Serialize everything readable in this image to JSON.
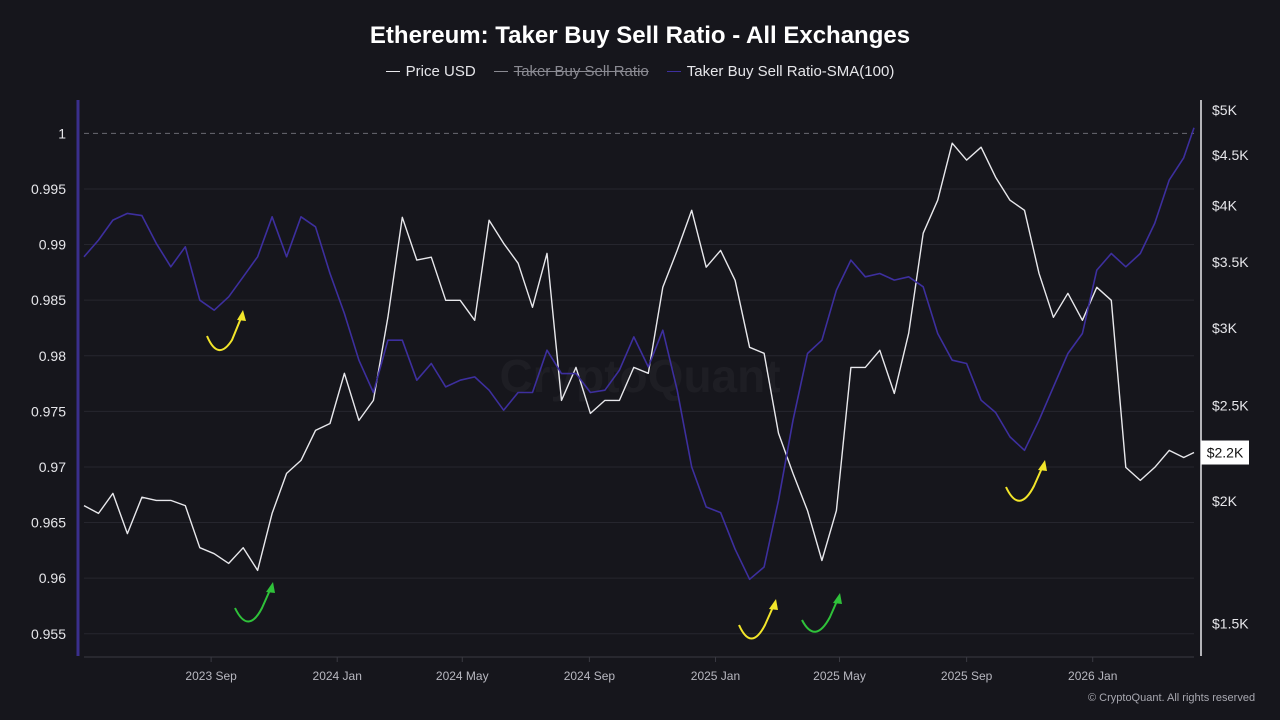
{
  "chart_data": {
    "type": "line",
    "title": "Ethereum: Taker Buy Sell Ratio - All Exchanges",
    "legend": [
      {
        "name": "Price USD",
        "color": "#e8e8ec",
        "visible": true
      },
      {
        "name": "Taker Buy Sell Ratio",
        "color": "#8a8a92",
        "visible": false
      },
      {
        "name": "Taker Buy Sell Ratio-SMA(100)",
        "color": "#3d2f9e",
        "visible": true
      }
    ],
    "legend_placement": "top-center",
    "xlim": [
      "2023-05-01",
      "2026-04-09"
    ],
    "x_ticks": [
      {
        "label": "2023 Sep",
        "date": "2023-09-01"
      },
      {
        "label": "2024 Jan",
        "date": "2024-01-01"
      },
      {
        "label": "2024 May",
        "date": "2024-05-01"
      },
      {
        "label": "2024 Sep",
        "date": "2024-09-01"
      },
      {
        "label": "2025 Jan",
        "date": "2025-01-01"
      },
      {
        "label": "2025 May",
        "date": "2025-05-01"
      },
      {
        "label": "2025 Sep",
        "date": "2025-09-01"
      },
      {
        "label": "2026 Jan",
        "date": "2026-01-01"
      }
    ],
    "y_left": {
      "ylim": [
        0.953,
        1.003
      ],
      "ticks": [
        {
          "v": 1,
          "label": "1"
        },
        {
          "v": 0.995,
          "label": "0.995"
        },
        {
          "v": 0.99,
          "label": "0.99"
        },
        {
          "v": 0.985,
          "label": "0.985"
        },
        {
          "v": 0.98,
          "label": "0.98"
        },
        {
          "v": 0.975,
          "label": "0.975"
        },
        {
          "v": 0.97,
          "label": "0.97"
        },
        {
          "v": 0.965,
          "label": "0.965"
        },
        {
          "v": 0.96,
          "label": "0.96"
        },
        {
          "v": 0.955,
          "label": "0.955"
        }
      ],
      "reference_line": 1,
      "grid": true
    },
    "y_right": {
      "scale": "log",
      "ylim": [
        1390,
        5120
      ],
      "ticks": [
        {
          "v": 5000,
          "label": "$5K"
        },
        {
          "v": 4500,
          "label": "$4.5K"
        },
        {
          "v": 4000,
          "label": "$4K"
        },
        {
          "v": 3500,
          "label": "$3.5K"
        },
        {
          "v": 3000,
          "label": "$3K"
        },
        {
          "v": 2500,
          "label": "$2.5K"
        },
        {
          "v": 2000,
          "label": "$2K"
        },
        {
          "v": 1500,
          "label": "$1.5K"
        }
      ],
      "current_label": "$2.2K",
      "current_value": 2240
    },
    "x": [
      "2023-05-01",
      "2023-05-15",
      "2023-05-29",
      "2023-06-12",
      "2023-06-26",
      "2023-07-10",
      "2023-07-24",
      "2023-08-07",
      "2023-08-21",
      "2023-09-04",
      "2023-09-18",
      "2023-10-02",
      "2023-10-16",
      "2023-10-30",
      "2023-11-13",
      "2023-11-27",
      "2023-12-11",
      "2023-12-25",
      "2024-01-08",
      "2024-01-22",
      "2024-02-05",
      "2024-02-19",
      "2024-03-04",
      "2024-03-18",
      "2024-04-01",
      "2024-04-15",
      "2024-04-29",
      "2024-05-13",
      "2024-05-27",
      "2024-06-10",
      "2024-06-24",
      "2024-07-08",
      "2024-07-22",
      "2024-08-05",
      "2024-08-19",
      "2024-09-02",
      "2024-09-16",
      "2024-09-30",
      "2024-10-14",
      "2024-10-28",
      "2024-11-11",
      "2024-11-25",
      "2024-12-09",
      "2024-12-23",
      "2025-01-06",
      "2025-01-20",
      "2025-02-03",
      "2025-02-17",
      "2025-03-03",
      "2025-03-17",
      "2025-03-31",
      "2025-04-14",
      "2025-04-28",
      "2025-05-12",
      "2025-05-26",
      "2025-06-09",
      "2025-06-23",
      "2025-07-07",
      "2025-07-21",
      "2025-08-04",
      "2025-08-18",
      "2025-09-01",
      "2025-09-15",
      "2025-09-29",
      "2025-10-13",
      "2025-10-27",
      "2025-11-10",
      "2025-11-24",
      "2025-12-08",
      "2025-12-22",
      "2026-01-05",
      "2026-01-19",
      "2026-02-02",
      "2026-02-16",
      "2026-03-02",
      "2026-03-16",
      "2026-03-30",
      "2026-04-09"
    ],
    "series": [
      {
        "name": "Price USD",
        "axis": "right",
        "color": "#e8e8ec",
        "values": [
          1978,
          1942,
          2035,
          1852,
          2017,
          2002,
          2002,
          1978,
          1792,
          1767,
          1727,
          1792,
          1699,
          1942,
          2133,
          2199,
          2359,
          2398,
          2697,
          2415,
          2531,
          3076,
          3889,
          3517,
          3541,
          3201,
          3201,
          3054,
          3862,
          3659,
          3492,
          3149,
          3573,
          2531,
          2735,
          2455,
          2531,
          2531,
          2735,
          2697,
          3300,
          3598,
          3953,
          3459,
          3598,
          3355,
          2867,
          2827,
          2343,
          2133,
          1955,
          1739,
          1955,
          2735,
          2735,
          2847,
          2573,
          2963,
          3746,
          4048,
          4627,
          4447,
          4583,
          4272,
          4048,
          3953,
          3410,
          3076,
          3254,
          3054,
          3300,
          3201,
          2163,
          2098,
          2163,
          2251,
          2214,
          2240
        ]
      },
      {
        "name": "Taker Buy Sell Ratio-SMA(100)",
        "axis": "left",
        "color": "#3d2f9e",
        "values": [
          0.9889,
          0.9904,
          0.9922,
          0.9928,
          0.9926,
          0.9901,
          0.988,
          0.9898,
          0.985,
          0.9841,
          0.9853,
          0.9871,
          0.9889,
          0.9925,
          0.9889,
          0.9925,
          0.9916,
          0.9874,
          0.9838,
          0.9796,
          0.9767,
          0.9814,
          0.9814,
          0.9778,
          0.9793,
          0.9772,
          0.9778,
          0.9781,
          0.9769,
          0.9751,
          0.9767,
          0.9767,
          0.9805,
          0.9784,
          0.9784,
          0.9767,
          0.9769,
          0.9787,
          0.9817,
          0.979,
          0.9823,
          0.9769,
          0.97,
          0.9664,
          0.9659,
          0.9626,
          0.9599,
          0.961,
          0.967,
          0.9742,
          0.9802,
          0.9814,
          0.9859,
          0.9886,
          0.9871,
          0.9874,
          0.9868,
          0.9871,
          0.9862,
          0.982,
          0.9796,
          0.9793,
          0.976,
          0.9749,
          0.9727,
          0.9715,
          0.9742,
          0.9772,
          0.9802,
          0.982,
          0.9877,
          0.9892,
          0.988,
          0.9892,
          0.9919,
          0.9958,
          0.9978,
          1.0005
        ]
      }
    ],
    "annotations": [
      {
        "type": "curved-arrow",
        "color": "#f2e52a",
        "near": "2023-08"
      },
      {
        "type": "curved-arrow",
        "color": "#2fc23a",
        "near": "2023-10"
      },
      {
        "type": "curved-arrow",
        "color": "#f2e52a",
        "near": "2025-02"
      },
      {
        "type": "curved-arrow",
        "color": "#2fc23a",
        "near": "2025-04"
      },
      {
        "type": "curved-arrow",
        "color": "#f2e52a",
        "near": "2025-11"
      }
    ],
    "watermark": "CryptoQuant"
  },
  "footer": {
    "copyright": "© CryptoQuant. All rights reserved"
  }
}
